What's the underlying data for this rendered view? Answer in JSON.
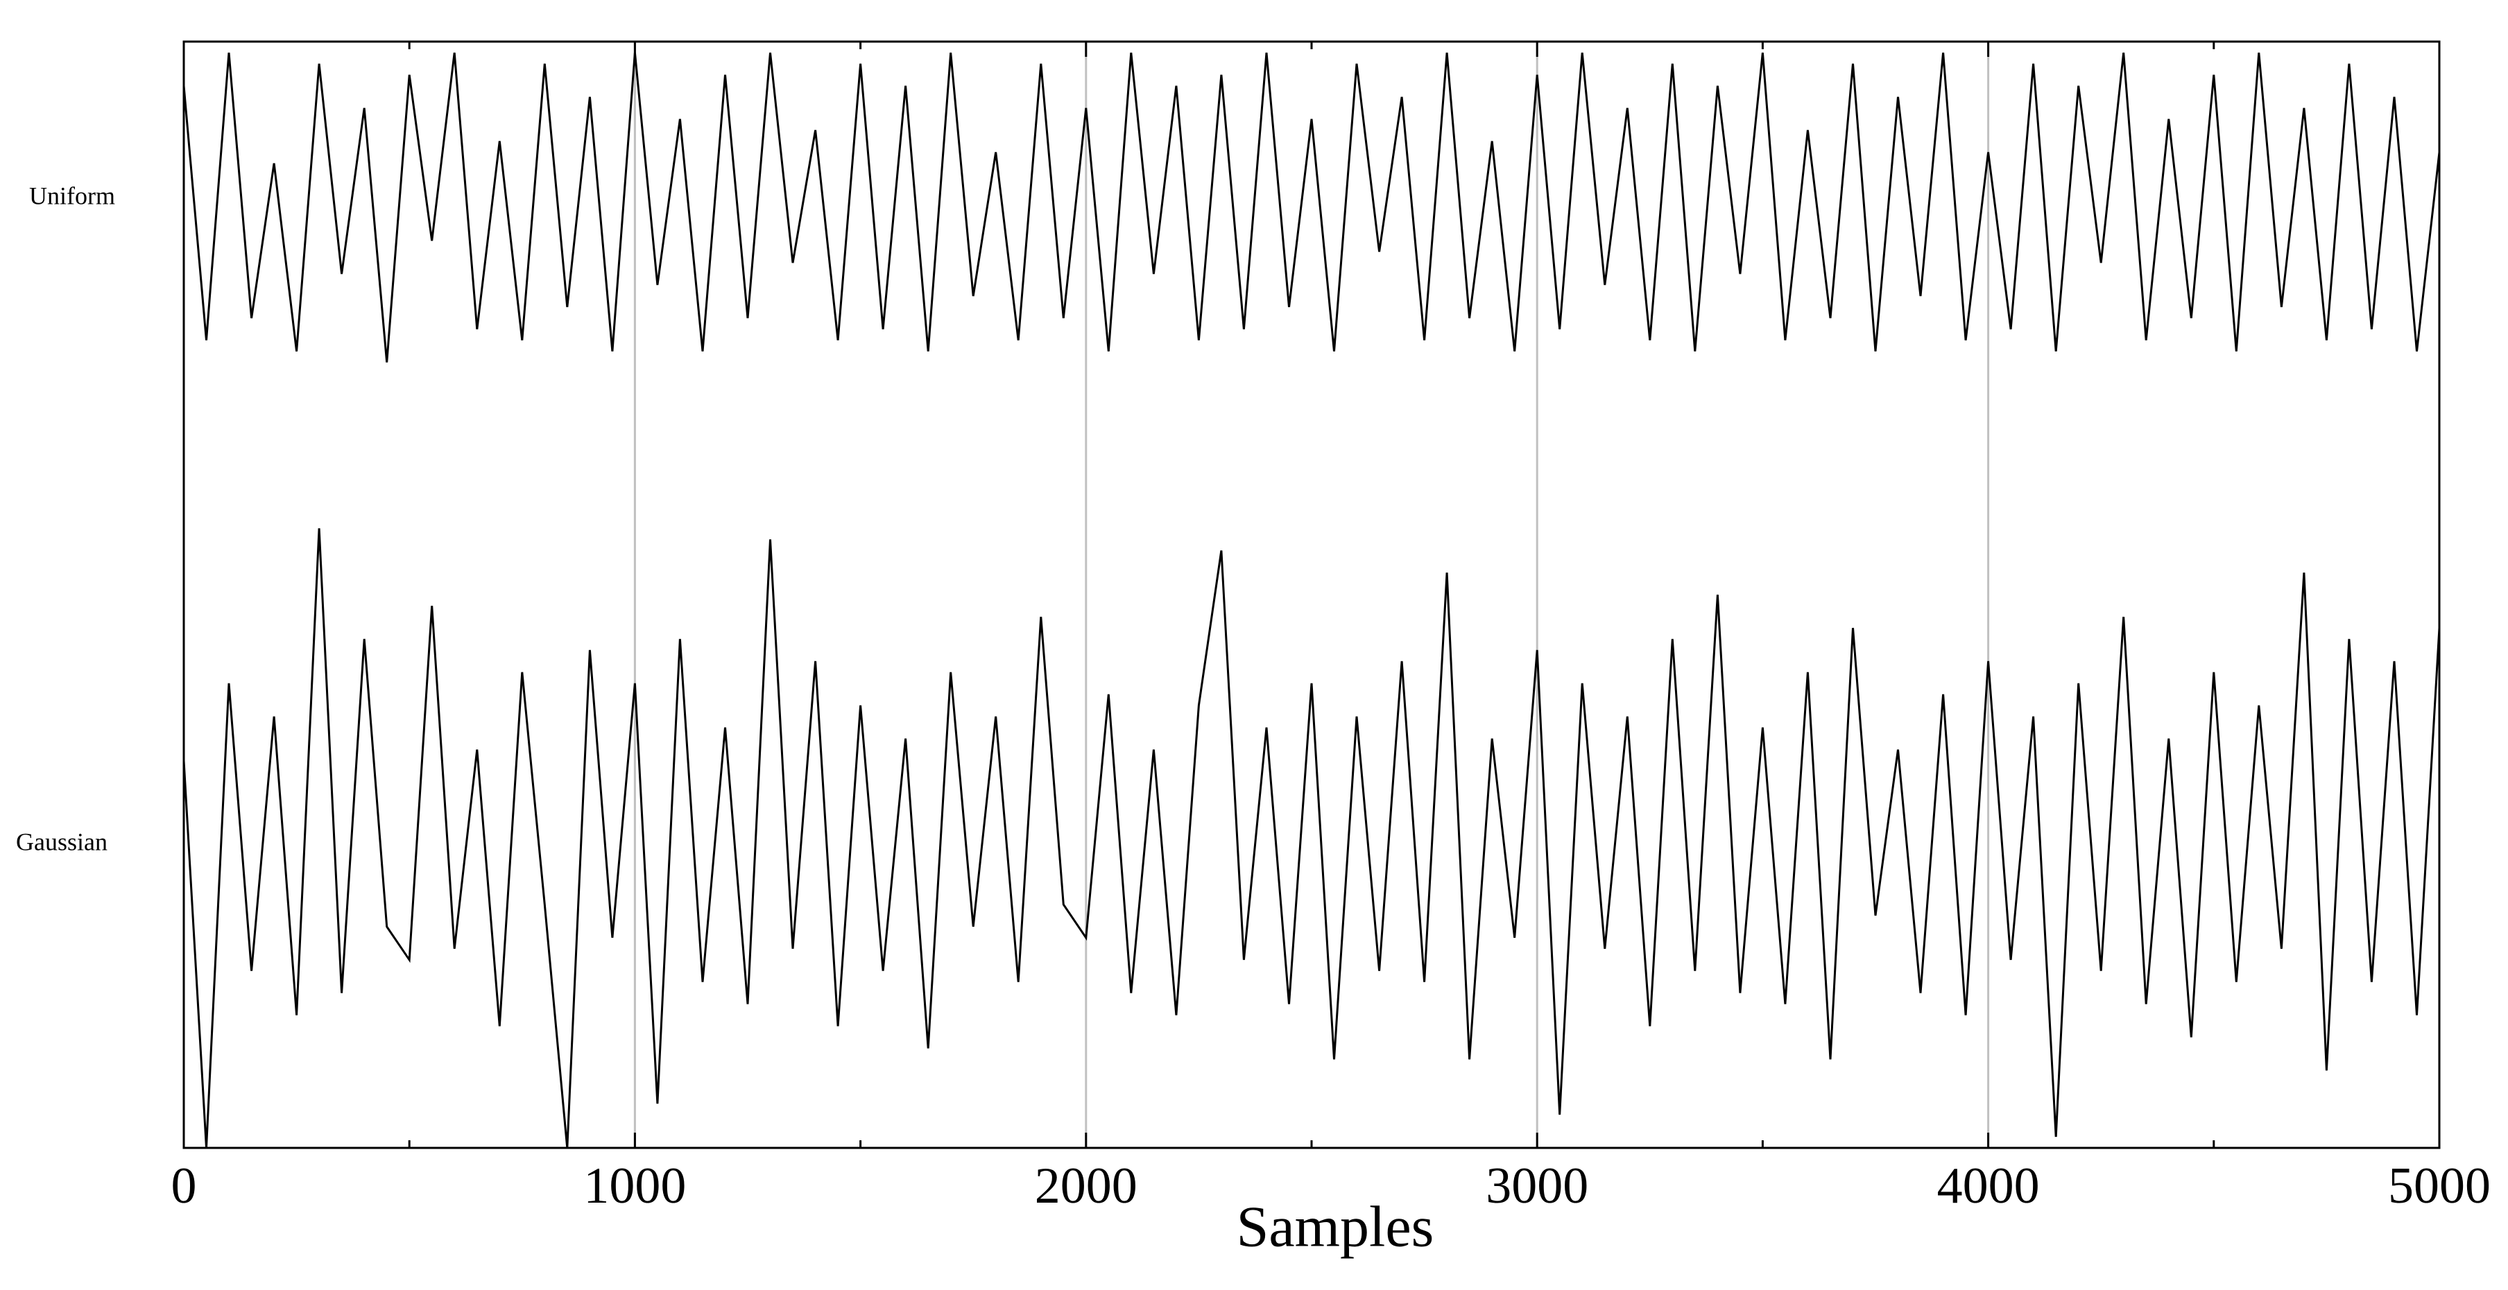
{
  "chart_data": {
    "type": "line",
    "xlabel": "Samples",
    "x": [
      0,
      50,
      100,
      150,
      200,
      250,
      300,
      350,
      400,
      450,
      500,
      550,
      600,
      650,
      700,
      750,
      800,
      850,
      900,
      950,
      1000,
      1050,
      1100,
      1150,
      1200,
      1250,
      1300,
      1350,
      1400,
      1450,
      1500,
      1550,
      1600,
      1650,
      1700,
      1750,
      1800,
      1850,
      1900,
      1950,
      2000,
      2050,
      2100,
      2150,
      2200,
      2250,
      2300,
      2350,
      2400,
      2450,
      2500,
      2550,
      2600,
      2650,
      2700,
      2750,
      2800,
      2850,
      2900,
      2950,
      3000,
      3050,
      3100,
      3150,
      3200,
      3250,
      3300,
      3350,
      3400,
      3450,
      3500,
      3550,
      3600,
      3650,
      3700,
      3750,
      3800,
      3850,
      3900,
      3950,
      4000,
      4050,
      4100,
      4150,
      4200,
      4250,
      4300,
      4350,
      4400,
      4450,
      4500,
      4550,
      4600,
      4650,
      4700,
      4750,
      4800,
      4850,
      4900,
      4950,
      5000
    ],
    "series": [
      {
        "name": "Uniform",
        "color": "#000000",
        "values": [
          9.6,
          7.3,
          9.9,
          7.5,
          8.9,
          7.2,
          9.8,
          7.9,
          9.4,
          7.1,
          9.7,
          8.2,
          9.9,
          7.4,
          9.1,
          7.3,
          9.8,
          7.6,
          9.5,
          7.2,
          9.9,
          7.8,
          9.3,
          7.2,
          9.7,
          7.5,
          9.9,
          8.0,
          9.2,
          7.3,
          9.8,
          7.4,
          9.6,
          7.2,
          9.9,
          7.7,
          9.0,
          7.3,
          9.8,
          7.5,
          9.4,
          7.2,
          9.9,
          7.9,
          9.6,
          7.3,
          9.7,
          7.4,
          9.9,
          7.6,
          9.3,
          7.2,
          9.8,
          8.1,
          9.5,
          7.3,
          9.9,
          7.5,
          9.1,
          7.2,
          9.7,
          7.4,
          9.9,
          7.8,
          9.4,
          7.3,
          9.8,
          7.2,
          9.6,
          7.9,
          9.9,
          7.3,
          9.2,
          7.5,
          9.8,
          7.2,
          9.5,
          7.7,
          9.9,
          7.3,
          9.0,
          7.4,
          9.8,
          7.2,
          9.6,
          8.0,
          9.9,
          7.3,
          9.3,
          7.5,
          9.7,
          7.2,
          9.9,
          7.6,
          9.4,
          7.3,
          9.8,
          7.4,
          9.5,
          7.2,
          9.0
        ]
      },
      {
        "name": "Gaussian",
        "color": "#000000",
        "values": [
          3.5,
          0.0,
          4.2,
          1.6,
          3.9,
          1.2,
          5.6,
          1.4,
          4.6,
          2.0,
          1.7,
          4.9,
          1.8,
          3.6,
          1.1,
          4.3,
          2.2,
          0.0,
          4.5,
          1.9,
          4.2,
          0.4,
          4.6,
          1.5,
          3.8,
          1.3,
          5.5,
          1.8,
          4.4,
          1.1,
          4.0,
          1.6,
          3.7,
          0.9,
          4.3,
          2.0,
          3.9,
          1.5,
          4.8,
          2.2,
          1.9,
          4.1,
          1.4,
          3.6,
          1.2,
          4.0,
          5.4,
          1.7,
          3.8,
          1.3,
          4.2,
          0.8,
          3.9,
          1.6,
          4.4,
          1.5,
          5.2,
          0.8,
          3.7,
          1.9,
          4.5,
          0.3,
          4.2,
          1.8,
          3.9,
          1.1,
          4.6,
          1.6,
          5.0,
          1.4,
          3.8,
          1.3,
          4.3,
          0.8,
          4.7,
          2.1,
          3.6,
          1.4,
          4.1,
          1.2,
          4.4,
          1.7,
          3.9,
          0.1,
          4.2,
          1.6,
          4.8,
          1.3,
          3.7,
          1.0,
          4.3,
          1.5,
          4.0,
          1.8,
          5.2,
          0.7,
          4.6,
          1.5,
          4.4,
          1.2,
          4.7
        ]
      }
    ],
    "xlim": [
      0,
      5000
    ],
    "xticks": [
      0,
      1000,
      2000,
      3000,
      4000,
      5000
    ],
    "xminorticks": [
      500,
      1500,
      2500,
      3500,
      4500
    ],
    "ylim": [
      0,
      10
    ],
    "grid": true
  }
}
